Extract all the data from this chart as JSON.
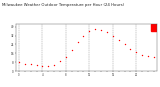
{
  "title": "Milwaukee Weather Outdoor Temperature per Hour (24 Hours)",
  "hours": [
    0,
    1,
    2,
    3,
    4,
    5,
    6,
    7,
    8,
    9,
    10,
    11,
    12,
    13,
    14,
    15,
    16,
    17,
    18,
    19,
    20,
    21,
    22,
    23
  ],
  "temps": [
    8,
    7,
    7,
    6,
    5,
    5,
    6,
    9,
    13,
    19,
    26,
    32,
    36,
    38,
    37,
    35,
    32,
    28,
    24,
    20,
    17,
    15,
    14,
    13
  ],
  "marker_color": "#FF0000",
  "bg_color": "#ffffff",
  "grid_color": "#888888",
  "ylim": [
    0,
    42
  ],
  "yticks": [
    0,
    8,
    16,
    24,
    32,
    40
  ],
  "xlim": [
    -0.5,
    23.5
  ],
  "title_color": "#222222",
  "title_fontsize": 2.8,
  "bar_highlight_color": "#FF0000",
  "bar_highlight_start": 22.5,
  "bar_highlight_end": 23.5
}
